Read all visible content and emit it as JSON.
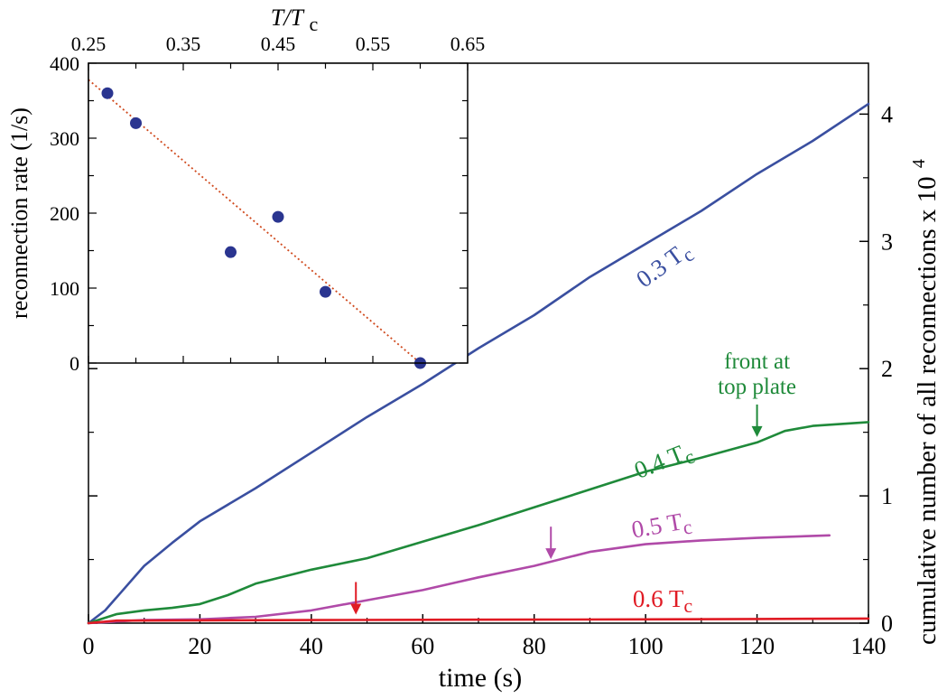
{
  "chart_data": [
    {
      "type": "line",
      "xlabel": "time (s)",
      "ylabel": "cumulative number of all reconnections x 10",
      "ylabel_exponent": "4",
      "xlim": [
        0,
        140
      ],
      "ylim": [
        0,
        4.4
      ],
      "xticks": [
        0,
        20,
        40,
        60,
        80,
        100,
        120,
        140
      ],
      "yticks": [
        0,
        1,
        2,
        3,
        4
      ],
      "series": [
        {
          "name": "0.3 Tc",
          "label": "0.3 T",
          "label_sub": "c",
          "color": "#3a4fa0",
          "x": [
            0,
            3,
            6,
            10,
            15,
            20,
            30,
            40,
            50,
            60,
            70,
            80,
            90,
            100,
            110,
            120,
            130,
            140
          ],
          "y": [
            0,
            0.1,
            0.25,
            0.45,
            0.63,
            0.8,
            1.06,
            1.34,
            1.62,
            1.88,
            2.16,
            2.42,
            2.72,
            2.98,
            3.24,
            3.53,
            3.79,
            4.08
          ]
        },
        {
          "name": "0.4 Tc",
          "label": "0.4 T",
          "label_sub": "c",
          "color": "#1f8a3a",
          "x": [
            0,
            5,
            10,
            15,
            20,
            25,
            30,
            40,
            50,
            60,
            70,
            80,
            90,
            100,
            110,
            120,
            125,
            130,
            140
          ],
          "y": [
            0,
            0.07,
            0.1,
            0.12,
            0.15,
            0.22,
            0.31,
            0.42,
            0.51,
            0.64,
            0.77,
            0.91,
            1.05,
            1.19,
            1.3,
            1.42,
            1.51,
            1.55,
            1.58
          ]
        },
        {
          "name": "0.5 Tc",
          "label": "0.5 T",
          "label_sub": "c",
          "color": "#b04aa8",
          "x": [
            0,
            10,
            20,
            30,
            40,
            50,
            60,
            70,
            80,
            90,
            100,
            110,
            120,
            133
          ],
          "y": [
            0,
            0.025,
            0.03,
            0.05,
            0.1,
            0.18,
            0.26,
            0.36,
            0.45,
            0.56,
            0.62,
            0.65,
            0.67,
            0.69
          ]
        },
        {
          "name": "0.6 Tc",
          "label": "0.6 T",
          "label_sub": "c",
          "color": "#e01b24",
          "x": [
            0,
            5,
            20,
            40,
            60,
            80,
            100,
            120,
            140
          ],
          "y": [
            0,
            0.02,
            0.022,
            0.024,
            0.026,
            0.028,
            0.03,
            0.033,
            0.036
          ]
        }
      ],
      "annotations": [
        {
          "text_line1": "front at",
          "text_line2": "top plate",
          "arrow_x": 120,
          "arrow_y": 1.42,
          "color": "#1f8a3a"
        },
        {
          "arrow_x": 83,
          "arrow_y": 0.46,
          "color": "#b04aa8"
        },
        {
          "arrow_x": 48,
          "arrow_y": 0.025,
          "color": "#e01b24"
        }
      ]
    },
    {
      "type": "scatter",
      "title": "T/Tc",
      "title_main": "T/T",
      "title_sub": "c",
      "ylabel": "reconnection rate (1/s)",
      "xlim": [
        0.25,
        0.65
      ],
      "ylim": [
        0,
        400
      ],
      "xticks": [
        "0.25",
        "0.35",
        "0.45",
        "0.55",
        "0.65"
      ],
      "yticks": [
        "0",
        "100",
        "200",
        "300",
        "400"
      ],
      "point_color": "#2a3590",
      "fit_color": "#d04a1e",
      "points": {
        "x": [
          0.27,
          0.3,
          0.4,
          0.45,
          0.5,
          0.6
        ],
        "y": [
          360,
          320,
          148,
          195,
          95,
          0
        ]
      },
      "fit": {
        "x": [
          0.25,
          0.6
        ],
        "y": [
          378,
          0
        ]
      }
    }
  ]
}
